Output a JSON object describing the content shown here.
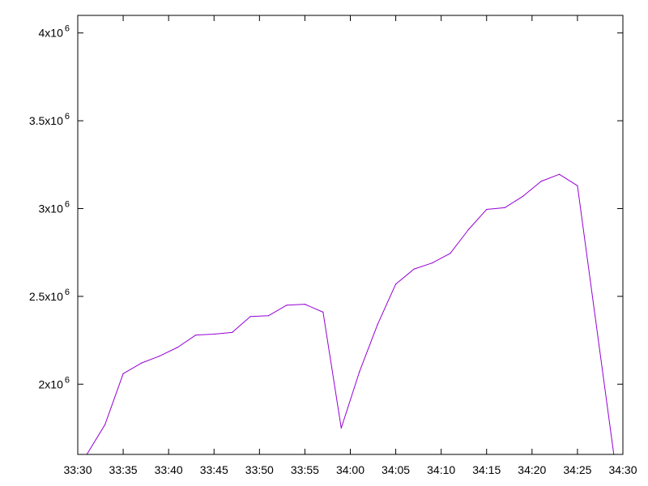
{
  "chart_data": {
    "type": "line",
    "title": "",
    "xlabel": "",
    "ylabel": "",
    "x_axis": {
      "kind": "time",
      "min": "33:30",
      "max": "34:30",
      "ticks": [
        "33:30",
        "33:35",
        "33:40",
        "33:45",
        "33:50",
        "33:55",
        "34:00",
        "34:05",
        "34:10",
        "34:15",
        "34:20",
        "34:25",
        "34:30"
      ]
    },
    "y_axis": {
      "min": 1600000,
      "max": 4100000,
      "ticks": [
        {
          "value": 2000000,
          "mantissa": "2",
          "base": "x10",
          "exponent": "6"
        },
        {
          "value": 2500000,
          "mantissa": "2.5",
          "base": "x10",
          "exponent": "6"
        },
        {
          "value": 3000000,
          "mantissa": "3",
          "base": "x10",
          "exponent": "6"
        },
        {
          "value": 3500000,
          "mantissa": "3.5",
          "base": "x10",
          "exponent": "6"
        },
        {
          "value": 4000000,
          "mantissa": "4",
          "base": "x10",
          "exponent": "6"
        }
      ]
    },
    "grid": false,
    "legend": "none",
    "series": [
      {
        "color": "#9400d3",
        "points": [
          {
            "x": "33:31",
            "y": 1600000
          },
          {
            "x": "33:33",
            "y": 1770000
          },
          {
            "x": "33:35",
            "y": 2060000
          },
          {
            "x": "33:37",
            "y": 2120000
          },
          {
            "x": "33:39",
            "y": 2160000
          },
          {
            "x": "33:41",
            "y": 2210000
          },
          {
            "x": "33:43",
            "y": 2280000
          },
          {
            "x": "33:45",
            "y": 2285000
          },
          {
            "x": "33:47",
            "y": 2295000
          },
          {
            "x": "33:49",
            "y": 2385000
          },
          {
            "x": "33:51",
            "y": 2390000
          },
          {
            "x": "33:53",
            "y": 2450000
          },
          {
            "x": "33:55",
            "y": 2455000
          },
          {
            "x": "33:57",
            "y": 2410000
          },
          {
            "x": "33:59",
            "y": 1750000
          },
          {
            "x": "34:01",
            "y": 2070000
          },
          {
            "x": "34:03",
            "y": 2340000
          },
          {
            "x": "34:05",
            "y": 2570000
          },
          {
            "x": "34:07",
            "y": 2655000
          },
          {
            "x": "34:09",
            "y": 2690000
          },
          {
            "x": "34:11",
            "y": 2745000
          },
          {
            "x": "34:13",
            "y": 2880000
          },
          {
            "x": "34:15",
            "y": 2995000
          },
          {
            "x": "34:17",
            "y": 3005000
          },
          {
            "x": "34:19",
            "y": 3070000
          },
          {
            "x": "34:21",
            "y": 3155000
          },
          {
            "x": "34:23",
            "y": 3195000
          },
          {
            "x": "34:25",
            "y": 3130000
          },
          {
            "x": "34:29",
            "y": 1600000
          }
        ]
      }
    ]
  }
}
